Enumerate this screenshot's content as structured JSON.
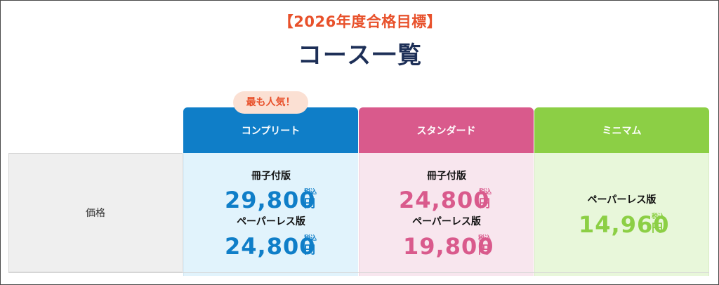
{
  "header": {
    "subtitle": "【2026年度合格目標】",
    "title": "コース一覧"
  },
  "badge": {
    "label": "最も人気！"
  },
  "columns": [
    {
      "name": "コンプリート",
      "color": "#0f7ec8"
    },
    {
      "name": "スタンダード",
      "color": "#d95a8c"
    },
    {
      "name": "ミニマム",
      "color": "#8ccf45"
    }
  ],
  "rows": [
    {
      "label": "価格"
    }
  ],
  "prices": {
    "complete": [
      {
        "type": "冊子付版",
        "amount": "29,800",
        "tax": "税込",
        "unit": "円"
      },
      {
        "type": "ペーパーレス版",
        "amount": "24,800",
        "tax": "税込",
        "unit": "円"
      }
    ],
    "standard": [
      {
        "type": "冊子付版",
        "amount": "24,800",
        "tax": "税込",
        "unit": "円"
      },
      {
        "type": "ペーパーレス版",
        "amount": "19,800",
        "tax": "税込",
        "unit": "円"
      }
    ],
    "minimum": [
      {
        "type": "ペーパーレス版",
        "amount": "14,960",
        "tax": "税込",
        "unit": "円"
      }
    ]
  }
}
